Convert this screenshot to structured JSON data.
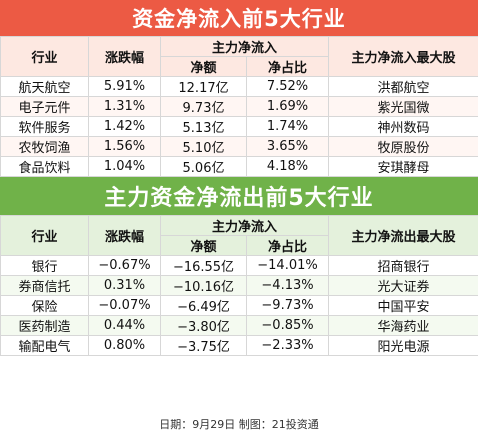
{
  "top": {
    "title": "资金净流入前5大行业",
    "headers": {
      "industry": "行业",
      "change": "涨跌幅",
      "main": "主力净流入",
      "amount": "净额",
      "ratio": "净占比",
      "stock": "主力净流入最大股"
    },
    "rows": [
      {
        "industry": "航天航空",
        "change": "5.91%",
        "amount": "12.17亿",
        "ratio": "7.52%",
        "stock": "洪都航空"
      },
      {
        "industry": "电子元件",
        "change": "1.31%",
        "amount": "9.73亿",
        "ratio": "1.69%",
        "stock": "紫光国微"
      },
      {
        "industry": "软件服务",
        "change": "1.42%",
        "amount": "5.13亿",
        "ratio": "1.74%",
        "stock": "神州数码"
      },
      {
        "industry": "农牧饲渔",
        "change": "1.56%",
        "amount": "5.10亿",
        "ratio": "3.65%",
        "stock": "牧原股份"
      },
      {
        "industry": "食品饮料",
        "change": "1.04%",
        "amount": "5.06亿",
        "ratio": "4.18%",
        "stock": "安琪酵母"
      }
    ]
  },
  "bottom": {
    "title": "主力资金净流出前5大行业",
    "headers": {
      "industry": "行业",
      "change": "涨跌幅",
      "main": "主力净流入",
      "amount": "净额",
      "ratio": "净占比",
      "stock": "主力净流出最大股"
    },
    "rows": [
      {
        "industry": "银行",
        "change": "−0.67%",
        "amount": "−16.55亿",
        "ratio": "−14.01%",
        "stock": "招商银行"
      },
      {
        "industry": "券商信托",
        "change": "0.31%",
        "amount": "−10.16亿",
        "ratio": "−4.13%",
        "stock": "光大证券"
      },
      {
        "industry": "保险",
        "change": "−0.07%",
        "amount": "−6.49亿",
        "ratio": "−9.73%",
        "stock": "中国平安"
      },
      {
        "industry": "医药制造",
        "change": "0.44%",
        "amount": "−3.80亿",
        "ratio": "−0.85%",
        "stock": "华海药业"
      },
      {
        "industry": "输配电气",
        "change": "0.80%",
        "amount": "−3.75亿",
        "ratio": "−2.33%",
        "stock": "阳光电源"
      }
    ]
  },
  "footer": {
    "text": "日期：9月29日  制图：21投资通"
  }
}
